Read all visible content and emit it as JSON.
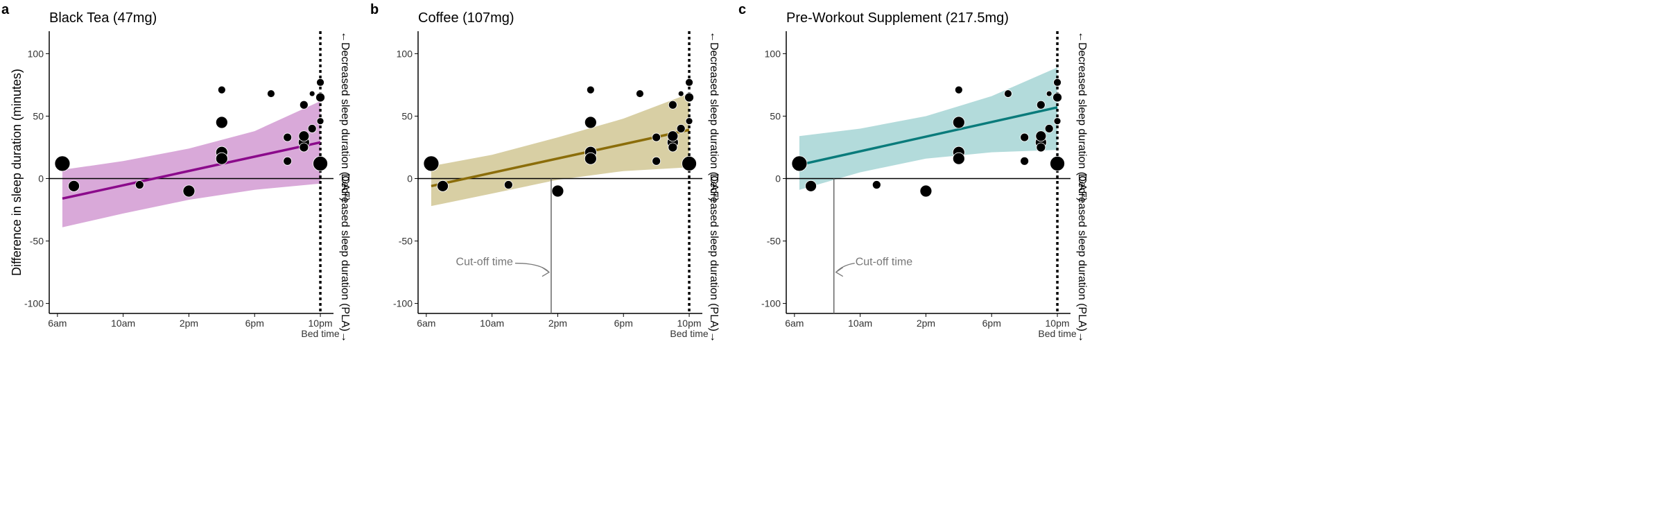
{
  "chart_data": [
    {
      "type": "scatter",
      "panel_letter": "a",
      "title": "Black Tea (47mg)",
      "ylabel": "Difference in sleep duration (minutes)",
      "xlabel": "",
      "x_tick_labels": [
        "6am",
        "10am",
        "2pm",
        "6pm",
        "10pm"
      ],
      "x_ticks_hours": [
        6,
        10,
        14,
        18,
        22
      ],
      "xlim": [
        5.5,
        22.8
      ],
      "y_tick_labels": [
        "100",
        "50",
        "0",
        "-50",
        "-100"
      ],
      "y_ticks": [
        100,
        50,
        0,
        -50,
        -100
      ],
      "ylim": [
        -108,
        118
      ],
      "bed_time_label": "Bed time",
      "bed_time_hour": 22,
      "right_label_top": "←Decreased sleep duration (CAF)",
      "right_label_bottom": "Decreased sleep duration (PLA)→",
      "color": "#8b0a8b",
      "band_color": "#d9a9d9",
      "fit": {
        "x0": 6.3,
        "y0": -16,
        "x1": 22,
        "y1": 29
      },
      "band_upper": [
        [
          6.3,
          7
        ],
        [
          10,
          14
        ],
        [
          14,
          24
        ],
        [
          18,
          38
        ],
        [
          22,
          62
        ]
      ],
      "band_lower": [
        [
          6.3,
          -39
        ],
        [
          10,
          -28
        ],
        [
          14,
          -17
        ],
        [
          18,
          -9
        ],
        [
          22,
          -4
        ]
      ],
      "cutoff": null,
      "points": [
        {
          "x": 6.3,
          "y": 12,
          "size": 11
        },
        {
          "x": 7.0,
          "y": -6,
          "size": 8
        },
        {
          "x": 11.0,
          "y": -5,
          "size": 6
        },
        {
          "x": 14.0,
          "y": -10,
          "size": 8.5
        },
        {
          "x": 16.0,
          "y": 71,
          "size": 5.5
        },
        {
          "x": 16.0,
          "y": 45,
          "size": 8.5
        },
        {
          "x": 16.0,
          "y": 21,
          "size": 8.5
        },
        {
          "x": 16.0,
          "y": 16,
          "size": 8.5
        },
        {
          "x": 19.0,
          "y": 68,
          "size": 5.5
        },
        {
          "x": 20.0,
          "y": 33,
          "size": 6
        },
        {
          "x": 20.0,
          "y": 14,
          "size": 6
        },
        {
          "x": 21.0,
          "y": 59,
          "size": 6
        },
        {
          "x": 21.0,
          "y": 34,
          "size": 7.5
        },
        {
          "x": 21.0,
          "y": 29,
          "size": 8
        },
        {
          "x": 21.0,
          "y": 25,
          "size": 6.5
        },
        {
          "x": 21.5,
          "y": 68,
          "size": 4
        },
        {
          "x": 21.5,
          "y": 40,
          "size": 6
        },
        {
          "x": 22.0,
          "y": 77,
          "size": 5.5
        },
        {
          "x": 22.0,
          "y": 65,
          "size": 6.5
        },
        {
          "x": 22.0,
          "y": 46,
          "size": 5
        },
        {
          "x": 22.0,
          "y": 12,
          "size": 10.5
        }
      ]
    },
    {
      "type": "scatter",
      "panel_letter": "b",
      "title": "Coffee (107mg)",
      "ylabel": "",
      "xlabel": "",
      "x_tick_labels": [
        "6am",
        "10am",
        "2pm",
        "6pm",
        "10pm"
      ],
      "x_ticks_hours": [
        6,
        10,
        14,
        18,
        22
      ],
      "xlim": [
        5.5,
        22.8
      ],
      "y_tick_labels": [
        "100",
        "50",
        "0",
        "-50",
        "-100"
      ],
      "y_ticks": [
        100,
        50,
        0,
        -50,
        -100
      ],
      "ylim": [
        -108,
        118
      ],
      "bed_time_label": "Bed time",
      "bed_time_hour": 22,
      "right_label_top": "←Decreased sleep duration (CAF)",
      "right_label_bottom": "Decreased sleep duration (PLA)→",
      "color": "#8b6d0a",
      "band_color": "#d8cfa4",
      "fit": {
        "x0": 6.3,
        "y0": -6,
        "x1": 22,
        "y1": 39
      },
      "band_upper": [
        [
          6.3,
          10
        ],
        [
          10,
          19
        ],
        [
          14,
          33
        ],
        [
          18,
          48
        ],
        [
          22,
          68
        ]
      ],
      "band_lower": [
        [
          6.3,
          -22
        ],
        [
          10,
          -12
        ],
        [
          14,
          -1
        ],
        [
          18,
          6
        ],
        [
          22,
          9
        ]
      ],
      "cutoff": {
        "label": "Cut-off time",
        "hour": 13.6,
        "label_side": "left"
      },
      "points": [
        {
          "x": 6.3,
          "y": 12,
          "size": 11
        },
        {
          "x": 7.0,
          "y": -6,
          "size": 8
        },
        {
          "x": 11.0,
          "y": -5,
          "size": 6
        },
        {
          "x": 14.0,
          "y": -10,
          "size": 8.5
        },
        {
          "x": 16.0,
          "y": 71,
          "size": 5.5
        },
        {
          "x": 16.0,
          "y": 45,
          "size": 8.5
        },
        {
          "x": 16.0,
          "y": 21,
          "size": 8.5
        },
        {
          "x": 16.0,
          "y": 16,
          "size": 8.5
        },
        {
          "x": 19.0,
          "y": 68,
          "size": 5.5
        },
        {
          "x": 20.0,
          "y": 33,
          "size": 6
        },
        {
          "x": 20.0,
          "y": 14,
          "size": 6
        },
        {
          "x": 21.0,
          "y": 59,
          "size": 6
        },
        {
          "x": 21.0,
          "y": 34,
          "size": 7.5
        },
        {
          "x": 21.0,
          "y": 29,
          "size": 8
        },
        {
          "x": 21.0,
          "y": 25,
          "size": 6.5
        },
        {
          "x": 21.5,
          "y": 68,
          "size": 4
        },
        {
          "x": 21.5,
          "y": 40,
          "size": 6
        },
        {
          "x": 22.0,
          "y": 77,
          "size": 5.5
        },
        {
          "x": 22.0,
          "y": 65,
          "size": 6.5
        },
        {
          "x": 22.0,
          "y": 46,
          "size": 5
        },
        {
          "x": 22.0,
          "y": 12,
          "size": 10.5
        }
      ]
    },
    {
      "type": "scatter",
      "panel_letter": "c",
      "title": "Pre-Workout Supplement (217.5mg)",
      "ylabel": "",
      "xlabel": "",
      "x_tick_labels": [
        "6am",
        "10am",
        "2pm",
        "6pm",
        "10pm"
      ],
      "x_ticks_hours": [
        6,
        10,
        14,
        18,
        22
      ],
      "xlim": [
        5.5,
        22.8
      ],
      "y_tick_labels": [
        "100",
        "50",
        "0",
        "-50",
        "-100"
      ],
      "y_ticks": [
        100,
        50,
        0,
        -50,
        -100
      ],
      "ylim": [
        -108,
        118
      ],
      "bed_time_label": "Bed time",
      "bed_time_hour": 22,
      "right_label_top": "←Decreased sleep duration (CAF)",
      "right_label_bottom": "Decreased sleep duration (PLA)→",
      "color": "#0a7b7b",
      "band_color": "#b3dbdb",
      "fit": {
        "x0": 6.3,
        "y0": 11,
        "x1": 22,
        "y1": 57
      },
      "band_upper": [
        [
          6.3,
          34
        ],
        [
          10,
          40
        ],
        [
          14,
          50
        ],
        [
          18,
          66
        ],
        [
          22,
          89
        ]
      ],
      "band_lower": [
        [
          6.3,
          -9
        ],
        [
          10,
          5
        ],
        [
          14,
          16
        ],
        [
          18,
          21
        ],
        [
          22,
          23
        ]
      ],
      "cutoff": {
        "label": "Cut-off time",
        "hour": 8.4,
        "label_side": "right"
      },
      "points": [
        {
          "x": 6.3,
          "y": 12,
          "size": 11
        },
        {
          "x": 7.0,
          "y": -6,
          "size": 8
        },
        {
          "x": 11.0,
          "y": -5,
          "size": 6
        },
        {
          "x": 14.0,
          "y": -10,
          "size": 8.5
        },
        {
          "x": 16.0,
          "y": 71,
          "size": 5.5
        },
        {
          "x": 16.0,
          "y": 45,
          "size": 8.5
        },
        {
          "x": 16.0,
          "y": 21,
          "size": 8.5
        },
        {
          "x": 16.0,
          "y": 16,
          "size": 8.5
        },
        {
          "x": 19.0,
          "y": 68,
          "size": 5.5
        },
        {
          "x": 20.0,
          "y": 33,
          "size": 6
        },
        {
          "x": 20.0,
          "y": 14,
          "size": 6
        },
        {
          "x": 21.0,
          "y": 59,
          "size": 6
        },
        {
          "x": 21.0,
          "y": 34,
          "size": 7.5
        },
        {
          "x": 21.0,
          "y": 29,
          "size": 8
        },
        {
          "x": 21.0,
          "y": 25,
          "size": 6.5
        },
        {
          "x": 21.5,
          "y": 68,
          "size": 4
        },
        {
          "x": 21.5,
          "y": 40,
          "size": 6
        },
        {
          "x": 22.0,
          "y": 77,
          "size": 5.5
        },
        {
          "x": 22.0,
          "y": 65,
          "size": 6.5
        },
        {
          "x": 22.0,
          "y": 46,
          "size": 5
        },
        {
          "x": 22.0,
          "y": 12,
          "size": 10.5
        }
      ]
    }
  ]
}
